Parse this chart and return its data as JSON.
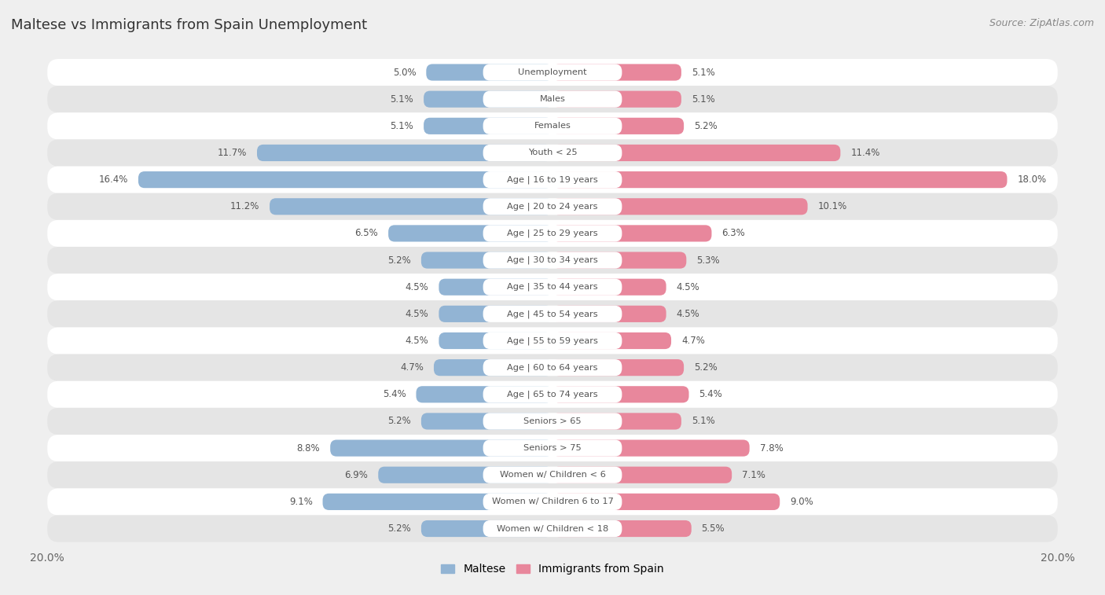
{
  "title": "Maltese vs Immigrants from Spain Unemployment",
  "source": "Source: ZipAtlas.com",
  "categories": [
    "Unemployment",
    "Males",
    "Females",
    "Youth < 25",
    "Age | 16 to 19 years",
    "Age | 20 to 24 years",
    "Age | 25 to 29 years",
    "Age | 30 to 34 years",
    "Age | 35 to 44 years",
    "Age | 45 to 54 years",
    "Age | 55 to 59 years",
    "Age | 60 to 64 years",
    "Age | 65 to 74 years",
    "Seniors > 65",
    "Seniors > 75",
    "Women w/ Children < 6",
    "Women w/ Children 6 to 17",
    "Women w/ Children < 18"
  ],
  "maltese": [
    5.0,
    5.1,
    5.1,
    11.7,
    16.4,
    11.2,
    6.5,
    5.2,
    4.5,
    4.5,
    4.5,
    4.7,
    5.4,
    5.2,
    8.8,
    6.9,
    9.1,
    5.2
  ],
  "immigrants": [
    5.1,
    5.1,
    5.2,
    11.4,
    18.0,
    10.1,
    6.3,
    5.3,
    4.5,
    4.5,
    4.7,
    5.2,
    5.4,
    5.1,
    7.8,
    7.1,
    9.0,
    5.5
  ],
  "maltese_color": "#92b4d4",
  "immigrants_color": "#e8879c",
  "background_color": "#efefef",
  "row_bg_color": "#ffffff",
  "row_alt_bg_color": "#e5e5e5",
  "max_value": 20.0,
  "legend_maltese": "Maltese",
  "legend_immigrants": "Immigrants from Spain",
  "label_bg_color": "#ffffff",
  "label_text_color": "#555555",
  "value_text_color": "#555555",
  "title_color": "#333333",
  "source_color": "#888888"
}
